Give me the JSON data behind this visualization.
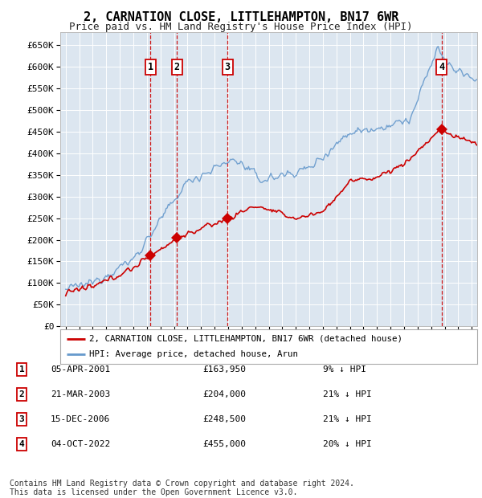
{
  "title": "2, CARNATION CLOSE, LITTLEHAMPTON, BN17 6WR",
  "subtitle": "Price paid vs. HM Land Registry's House Price Index (HPI)",
  "background_color": "#ffffff",
  "plot_bg_color": "#dce6f0",
  "grid_color": "#ffffff",
  "legend_label_red": "2, CARNATION CLOSE, LITTLEHAMPTON, BN17 6WR (detached house)",
  "legend_label_blue": "HPI: Average price, detached house, Arun",
  "footer": "Contains HM Land Registry data © Crown copyright and database right 2024.\nThis data is licensed under the Open Government Licence v3.0.",
  "sales": [
    {
      "num": 1,
      "date": "05-APR-2001",
      "price": 163950,
      "pct": "9%",
      "dir": "↓"
    },
    {
      "num": 2,
      "date": "21-MAR-2003",
      "price": 204000,
      "pct": "21%",
      "dir": "↓"
    },
    {
      "num": 3,
      "date": "15-DEC-2006",
      "price": 248500,
      "pct": "21%",
      "dir": "↓"
    },
    {
      "num": 4,
      "date": "04-OCT-2022",
      "price": 455000,
      "pct": "20%",
      "dir": "↓"
    }
  ],
  "sale_dates_decimal": [
    2001.26,
    2003.22,
    2006.96,
    2022.76
  ],
  "sale_prices": [
    163950,
    204000,
    248500,
    455000
  ],
  "ylim": [
    0,
    680000
  ],
  "yticks": [
    0,
    50000,
    100000,
    150000,
    200000,
    250000,
    300000,
    350000,
    400000,
    450000,
    500000,
    550000,
    600000,
    650000
  ],
  "xlim_start": 1994.6,
  "xlim_end": 2025.4,
  "red_color": "#cc0000",
  "blue_color": "#6699cc",
  "vline_color": "#cc0000",
  "dot_color": "#cc0000",
  "dot_size": 7
}
